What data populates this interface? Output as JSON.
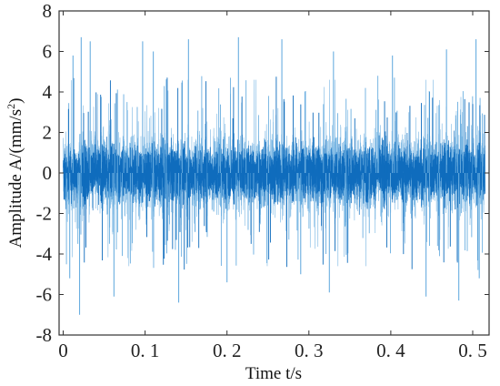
{
  "chart_data": {
    "type": "line",
    "title": "",
    "xlabel": "Time t/s",
    "ylabel_main": "Amplitude A/(mm/s",
    "ylabel_sup": "2",
    "ylabel_close": ")",
    "xlim": [
      -0.005,
      0.52
    ],
    "ylim": [
      -8,
      8
    ],
    "grid": false,
    "x_ticks": [
      {
        "value": 0,
        "label": "0"
      },
      {
        "value": 0.1,
        "label": "0. 1"
      },
      {
        "value": 0.2,
        "label": "0. 2"
      },
      {
        "value": 0.3,
        "label": "0. 3"
      },
      {
        "value": 0.4,
        "label": "0. 4"
      },
      {
        "value": 0.5,
        "label": "0. 5"
      }
    ],
    "y_ticks": [
      {
        "value": 8,
        "label": "8"
      },
      {
        "value": 6,
        "label": "6"
      },
      {
        "value": 4,
        "label": "4"
      },
      {
        "value": 2,
        "label": "2"
      },
      {
        "value": 0,
        "label": "0"
      },
      {
        "value": -2,
        "label": "-2"
      },
      {
        "value": -4,
        "label": "-4"
      },
      {
        "value": -6,
        "label": "-6"
      },
      {
        "value": -8,
        "label": "-8"
      }
    ],
    "series": [
      {
        "color": "#0f6cbd",
        "light_color": "#6aaee0",
        "n_points": 5200,
        "spikes": [
          {
            "x": 0.022,
            "y": 6.7
          },
          {
            "x": 0.033,
            "y": 6.5
          },
          {
            "x": 0.097,
            "y": 6.5
          },
          {
            "x": 0.153,
            "y": 6.6
          },
          {
            "x": 0.214,
            "y": 6.7
          },
          {
            "x": 0.267,
            "y": 6.6
          },
          {
            "x": 0.504,
            "y": 6.6
          },
          {
            "x": 0.012,
            "y": 5.8
          },
          {
            "x": 0.11,
            "y": 6.0
          },
          {
            "x": 0.33,
            "y": 6.0
          },
          {
            "x": 0.402,
            "y": 5.8
          },
          {
            "x": 0.468,
            "y": 6.1
          },
          {
            "x": 0.02,
            "y": -7.0
          },
          {
            "x": 0.141,
            "y": -6.4
          },
          {
            "x": 0.062,
            "y": -6.1
          },
          {
            "x": 0.325,
            "y": -5.9
          },
          {
            "x": 0.443,
            "y": -6.1
          },
          {
            "x": 0.483,
            "y": -6.3
          },
          {
            "x": 0.008,
            "y": -5.2
          },
          {
            "x": 0.29,
            "y": -5.0
          },
          {
            "x": 0.508,
            "y": -5.2
          },
          {
            "x": 0.2,
            "y": -5.4
          }
        ]
      }
    ]
  }
}
